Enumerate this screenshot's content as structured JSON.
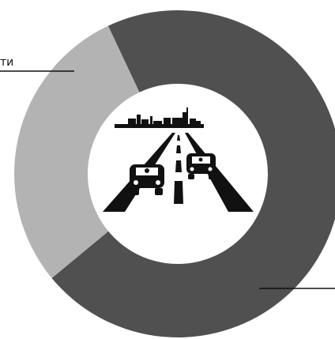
{
  "chart_data": {
    "type": "pie",
    "title": "",
    "slices": [
      {
        "label": "ти",
        "value": 71,
        "color": "#505050"
      },
      {
        "label": "",
        "value": 29,
        "color": "#b3b3b3"
      }
    ],
    "colors": {
      "background": "#ffffff",
      "dark_slice": "#505050",
      "light_slice": "#b3b3b3",
      "icon": "#111111"
    },
    "center_image": {
      "icon": "road-cars-city-skyline"
    }
  }
}
